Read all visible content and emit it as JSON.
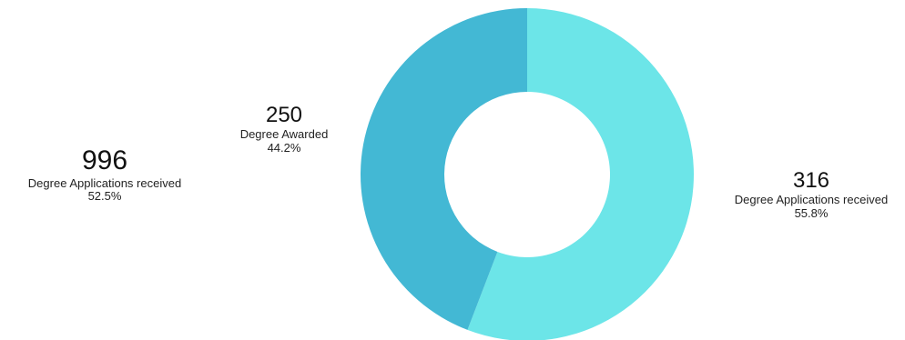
{
  "chart_data": {
    "type": "pie",
    "variant": "donut",
    "slices": [
      {
        "label": "Degree Applications received",
        "value": 316,
        "percent": "55.8%",
        "color": "#6ce5e8"
      },
      {
        "label": "Degree Awarded",
        "value": 250,
        "percent": "44.2%",
        "color": "#43b8d4"
      }
    ]
  },
  "callouts": {
    "left": {
      "value": "996",
      "label": "Degree Applications received",
      "percent": "52.5%"
    },
    "mid": {
      "value": "250",
      "label": "Degree Awarded",
      "percent": "44.2%"
    },
    "right": {
      "value": "316",
      "label": "Degree Applications received",
      "percent": "55.8%"
    }
  }
}
